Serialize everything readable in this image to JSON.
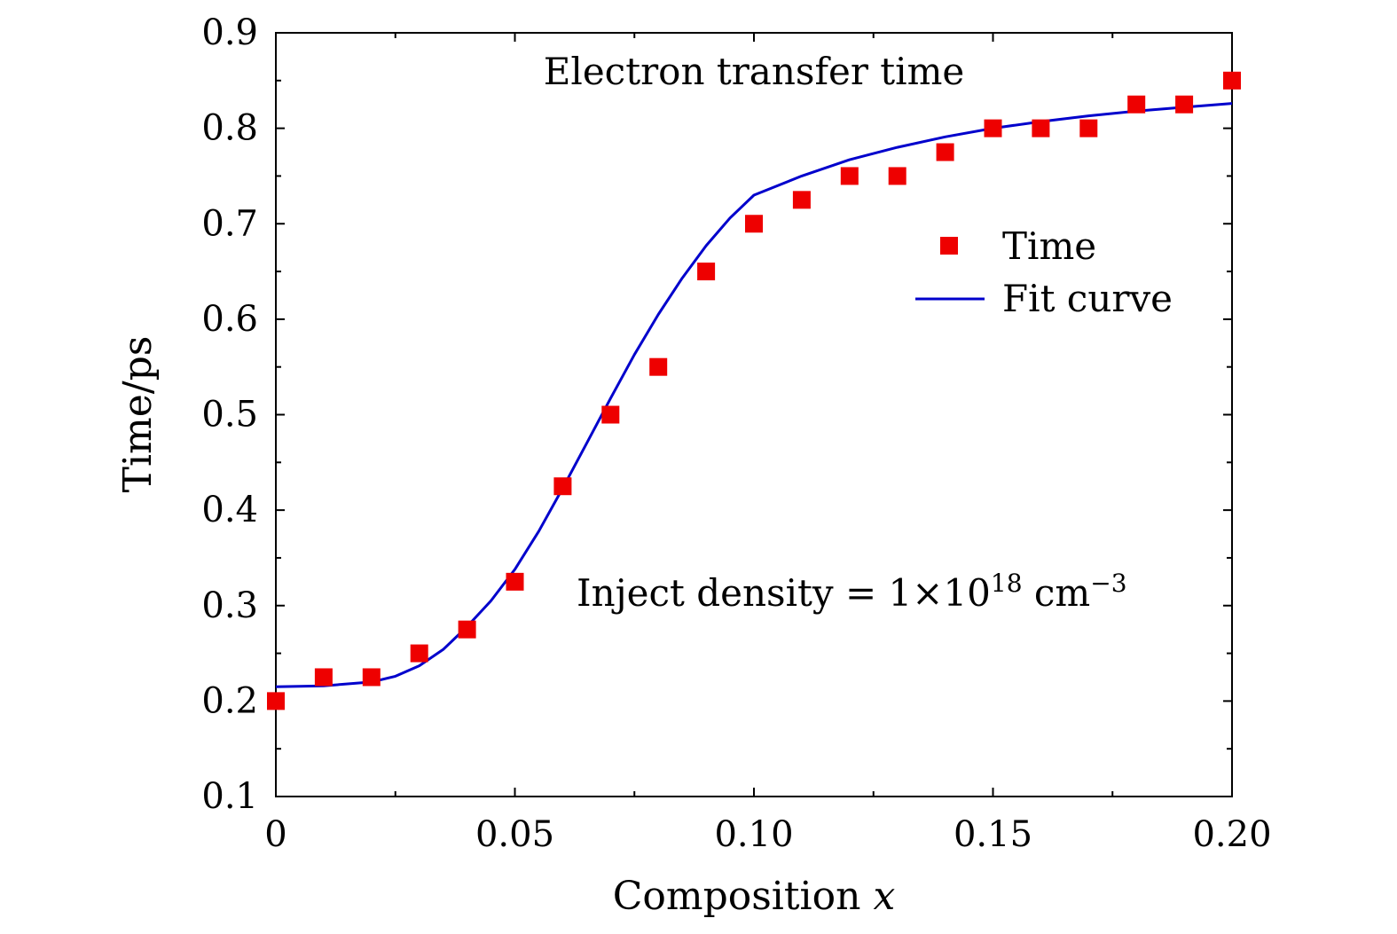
{
  "chart_data": {
    "type": "scatter",
    "title": "",
    "xlabel": "Composition",
    "xlabel_var": "x",
    "ylabel": "Time/ps",
    "xlim": [
      0,
      0.2
    ],
    "ylim": [
      0.1,
      0.9
    ],
    "x_ticks": [
      0,
      0.05,
      0.1,
      0.15,
      0.2
    ],
    "x_tick_labels": [
      "0",
      "0.05",
      "0.10",
      "0.15",
      "0.20"
    ],
    "y_ticks": [
      0.1,
      0.2,
      0.3,
      0.4,
      0.5,
      0.6,
      0.7,
      0.8,
      0.9
    ],
    "y_tick_labels": [
      "0.1",
      "0.2",
      "0.3",
      "0.4",
      "0.5",
      "0.6",
      "0.7",
      "0.8",
      "0.9"
    ],
    "grid": false,
    "legend_position": "upper-right",
    "series": [
      {
        "name": "Time",
        "kind": "markers",
        "color": "#ee0000",
        "x": [
          0,
          0.01,
          0.02,
          0.03,
          0.04,
          0.05,
          0.06,
          0.07,
          0.08,
          0.09,
          0.1,
          0.11,
          0.12,
          0.13,
          0.14,
          0.15,
          0.16,
          0.17,
          0.18,
          0.19,
          0.2
        ],
        "y": [
          0.2,
          0.225,
          0.225,
          0.25,
          0.275,
          0.325,
          0.425,
          0.5,
          0.55,
          0.65,
          0.7,
          0.725,
          0.75,
          0.75,
          0.775,
          0.8,
          0.8,
          0.8,
          0.825,
          0.825,
          0.85
        ]
      },
      {
        "name": "Fit curve",
        "kind": "line",
        "color": "#0000cc",
        "x": [
          0,
          0.01,
          0.02,
          0.025,
          0.03,
          0.035,
          0.04,
          0.045,
          0.05,
          0.055,
          0.06,
          0.065,
          0.07,
          0.075,
          0.08,
          0.085,
          0.09,
          0.095,
          0.1,
          0.11,
          0.12,
          0.13,
          0.14,
          0.15,
          0.16,
          0.17,
          0.18,
          0.19,
          0.2
        ],
        "y": [
          0.215,
          0.216,
          0.22,
          0.226,
          0.237,
          0.254,
          0.278,
          0.305,
          0.338,
          0.378,
          0.423,
          0.47,
          0.517,
          0.563,
          0.605,
          0.643,
          0.677,
          0.706,
          0.73,
          0.75,
          0.767,
          0.78,
          0.791,
          0.8,
          0.807,
          0.813,
          0.818,
          0.822,
          0.826
        ]
      }
    ],
    "annotations": [
      {
        "text": "Electron transfer time"
      },
      {
        "text": "Inject density = 1×10",
        "sup": "18",
        "unit": " cm",
        "unit_sup": "−3"
      }
    ]
  }
}
